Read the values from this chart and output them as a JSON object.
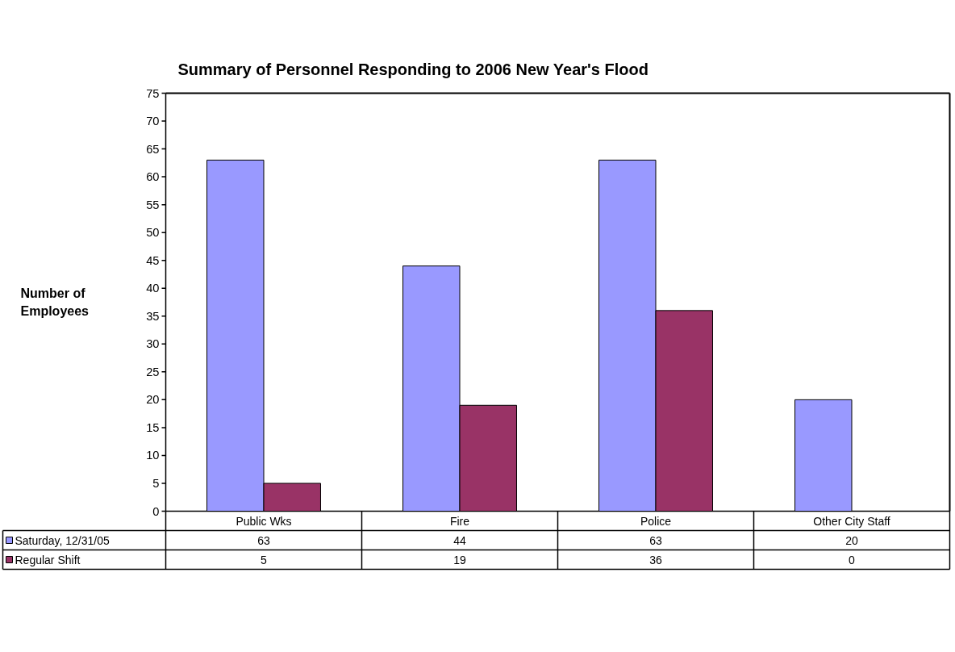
{
  "chart_data": {
    "type": "bar",
    "title": "Summary of Personnel Responding to 2006 New Year's Flood",
    "ylabel": "Number of Employees",
    "categories": [
      "Public Wks",
      "Fire",
      "Police",
      "Other City Staff"
    ],
    "series": [
      {
        "name": "Saturday, 12/31/05",
        "color": "#9999ff",
        "values": [
          63,
          44,
          63,
          20
        ]
      },
      {
        "name": "Regular Shift",
        "color": "#993366",
        "values": [
          5,
          19,
          36,
          0
        ]
      }
    ],
    "ylim": [
      0,
      75
    ],
    "yticks": [
      0,
      5,
      10,
      15,
      20,
      25,
      30,
      35,
      40,
      45,
      50,
      55,
      60,
      65,
      70,
      75
    ],
    "grid": false,
    "legend": "left",
    "data_labels": true
  }
}
